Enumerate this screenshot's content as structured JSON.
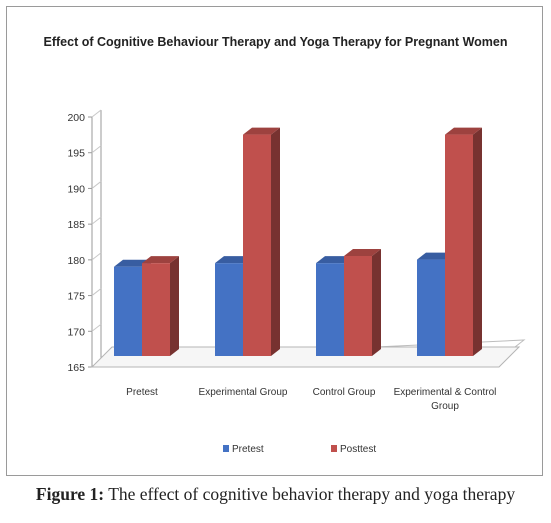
{
  "chart_data": {
    "type": "bar",
    "title": "Effect of Cognitive Behaviour Therapy  and Yoga Therapy for Pregnant Women",
    "categories": [
      "Pretest",
      "Experimental Group",
      "Control Group",
      "Experimental & Control Group"
    ],
    "series": [
      {
        "name": "Pretest",
        "values": [
          177.5,
          178,
          178,
          178.5
        ]
      },
      {
        "name": "Posttest",
        "values": [
          178,
          196,
          179,
          196
        ]
      }
    ],
    "ylim": [
      165,
      200
    ],
    "yticks": [
      165,
      170,
      175,
      180,
      185,
      190,
      195,
      200
    ],
    "grid": false,
    "legend_position": "bottom",
    "style": "3d-column"
  },
  "colors": {
    "pretest": "#4472C4",
    "posttest": "#C0504D"
  },
  "caption": {
    "label": "Figure 1:",
    "text": " The effect of cognitive behavior therapy and yoga therapy"
  }
}
